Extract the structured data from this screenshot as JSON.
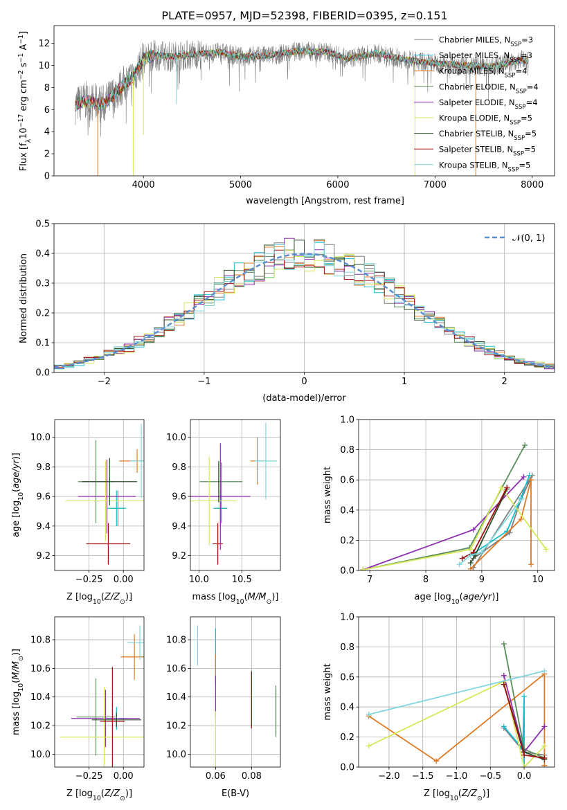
{
  "figure_title": "PLATE=0957, MJD=52398, FIBERID=0395, z=0.151",
  "models": [
    {
      "name": "Chabrier MILES, N_SSP=3",
      "base": "Chabrier MILES, N",
      "sub": "SSP",
      "tail": "=3",
      "color": "#7f7f7f"
    },
    {
      "name": "Salpeter MILES, N_SSP=3",
      "base": "Salpeter MILES, N",
      "sub": "SSP",
      "tail": "=3",
      "color": "#17becf"
    },
    {
      "name": "Kroupa MILES, N_SSP=4",
      "base": "Kroupa MILES, N",
      "sub": "SSP",
      "tail": "=4",
      "color": "#e07b24"
    },
    {
      "name": "Chabrier ELODIE, N_SSP=4",
      "base": "Chabrier ELODIE, N",
      "sub": "SSP",
      "tail": "=4",
      "color": "#5a8f5a"
    },
    {
      "name": "Salpeter ELODIE, N_SSP=4",
      "base": "Salpeter ELODIE, N",
      "sub": "SSP",
      "tail": "=4",
      "color": "#8e30b0"
    },
    {
      "name": "Kroupa ELODIE, N_SSP=5",
      "base": "Kroupa ELODIE, N",
      "sub": "SSP",
      "tail": "=5",
      "color": "#d6e85a"
    },
    {
      "name": "Chabrier STELIB, N_SSP=5",
      "base": "Chabrier STELIB, N",
      "sub": "SSP",
      "tail": "=5",
      "color": "#2f4f2f"
    },
    {
      "name": "Salpeter STELIB, N_SSP=5",
      "base": "Salpeter STELIB, N",
      "sub": "SSP",
      "tail": "=5",
      "color": "#a01010"
    },
    {
      "name": "Kroupa STELIB, N_SSP=5",
      "base": "Kroupa STELIB, N",
      "sub": "SSP",
      "tail": "=5",
      "color": "#7fd6dd"
    }
  ],
  "chart_data": [
    {
      "id": "spectrum",
      "type": "line",
      "xlabel": "wavelength [Angstrom, rest frame]",
      "ylabel": "Flux [f_λ 10^-17 erg cm^-2 s^-1 A^-1]",
      "xlim": [
        3080,
        8230
      ],
      "ylim": [
        0,
        13.6
      ],
      "xticks": [
        4000,
        5000,
        6000,
        7000,
        8000
      ],
      "yticks": [
        0,
        2,
        4,
        6,
        8,
        10,
        12
      ],
      "grid": false,
      "legend": "right, inside axes",
      "continuum": {
        "x": [
          3300,
          3400,
          3500,
          3600,
          3700,
          3800,
          3900,
          4000,
          4100,
          4300,
          4500,
          4800,
          5000,
          5300,
          5600,
          5900,
          6100,
          6400,
          6700,
          7000,
          7300,
          7600,
          7900,
          7950
        ],
        "y": [
          6.4,
          6.8,
          6.6,
          6.5,
          7.4,
          8.3,
          9.0,
          10.6,
          10.9,
          10.8,
          11.0,
          11.2,
          10.8,
          10.9,
          11.3,
          11.2,
          10.6,
          11.1,
          10.5,
          10.2,
          10.0,
          9.9,
          10.5,
          10.4
        ]
      },
      "absorption_lines": [
        {
          "x": 3530,
          "depth": 0.0
        },
        {
          "x": 3895,
          "depth": 0.0
        },
        {
          "x": 4000,
          "depth": 3.7
        },
        {
          "x": 4340,
          "depth": 6.5
        },
        {
          "x": 6795,
          "depth": 0.0
        },
        {
          "x": 7420,
          "depth": 0.0
        }
      ]
    },
    {
      "id": "residual_histogram",
      "type": "histogram",
      "xlabel": "(data-model)/error",
      "ylabel": "Normed distribution",
      "xlim": [
        -2.5,
        2.5
      ],
      "ylim": [
        0,
        0.5
      ],
      "xticks": [
        -2,
        -1,
        0,
        1,
        2
      ],
      "yticks": [
        0.0,
        0.1,
        0.2,
        0.3,
        0.4,
        0.5
      ],
      "grid": true,
      "legend": {
        "label": "𝒩(0, 1)",
        "position": "top-right"
      },
      "bin_width": 0.1,
      "reference_curve": "standard normal N(0,1)"
    },
    {
      "id": "age_vs_Z",
      "type": "errorbar",
      "xlabel": "Z [log10(Z/Z⊙)]",
      "ylabel": "age [log10(age/yr)]",
      "xlim": [
        -0.5,
        0.15
      ],
      "ylim": [
        9.1,
        10.12
      ],
      "xticks": [
        -0.25,
        0.0
      ],
      "yticks": [
        9.2,
        9.4,
        9.6,
        9.8,
        10.0
      ],
      "grid": true,
      "points": [
        {
          "x": -0.04,
          "y": 9.52,
          "xerr": 0.05,
          "yerr": 0.12
        },
        {
          "x": -0.05,
          "y": 9.52,
          "xerr": 0.07,
          "yerr": 0.12
        },
        {
          "x": 0.1,
          "y": 9.84,
          "xerr": 0.13,
          "yerr": 0.08
        },
        {
          "x": -0.2,
          "y": 9.7,
          "xerr": 0.13,
          "yerr": 0.28
        },
        {
          "x": -0.12,
          "y": 9.6,
          "xerr": 0.21,
          "yerr": 0.25
        },
        {
          "x": -0.13,
          "y": 9.57,
          "xerr": 0.29,
          "yerr": 0.27
        },
        {
          "x": -0.1,
          "y": 9.7,
          "xerr": 0.2,
          "yerr": 0.16
        },
        {
          "x": -0.11,
          "y": 9.28,
          "xerr": 0.16,
          "yerr": 0.14
        },
        {
          "x": 0.13,
          "y": 9.84,
          "xerr": 0.08,
          "yerr": 0.25
        }
      ]
    },
    {
      "id": "age_vs_mass",
      "type": "errorbar",
      "xlabel": "mass [log10(M/M⊙)]",
      "ylabel": "",
      "xlim": [
        9.9,
        10.95
      ],
      "ylim": [
        9.1,
        10.12
      ],
      "xticks": [
        10.0,
        10.5
      ],
      "yticks": [
        9.2,
        9.4,
        9.6,
        9.8,
        10.0
      ],
      "grid": true,
      "points": [
        {
          "x": 10.26,
          "y": 9.52,
          "xerr": 0.07,
          "yerr": 0.1
        },
        {
          "x": 10.25,
          "y": 9.52,
          "xerr": 0.08,
          "yerr": 0.12
        },
        {
          "x": 10.68,
          "y": 9.84,
          "xerr": 0.08,
          "yerr": 0.16
        },
        {
          "x": 10.26,
          "y": 9.7,
          "xerr": 0.25,
          "yerr": 0.13
        },
        {
          "x": 10.25,
          "y": 9.6,
          "xerr": 0.35,
          "yerr": 0.36
        },
        {
          "x": 10.12,
          "y": 9.57,
          "xerr": 0.32,
          "yerr": 0.3
        },
        {
          "x": 10.23,
          "y": 9.7,
          "xerr": 0.0,
          "yerr": 0.14
        },
        {
          "x": 10.22,
          "y": 9.28,
          "xerr": 0.06,
          "yerr": 0.14
        },
        {
          "x": 10.78,
          "y": 9.84,
          "xerr": 0.13,
          "yerr": 0.26
        }
      ]
    },
    {
      "id": "massweight_vs_age",
      "type": "line",
      "xlabel": "age [log10(age/yr)]",
      "ylabel": "mass weight",
      "xlim": [
        6.8,
        10.3
      ],
      "ylim": [
        0,
        1.0
      ],
      "xticks": [
        7,
        8,
        9,
        10
      ],
      "yticks": [
        0.0,
        0.2,
        0.4,
        0.6,
        0.8,
        1.0
      ],
      "grid": true,
      "series": [
        {
          "x": [
            8.85,
            9.5,
            9.7,
            9.9,
            8.85
          ],
          "y": [
            0.08,
            0.25,
            0.47,
            0.63,
            0.02
          ]
        },
        {
          "x": [
            8.8,
            9.45,
            9.7,
            9.85
          ],
          "y": [
            0.1,
            0.26,
            0.48,
            0.63
          ]
        },
        {
          "x": [
            8.8,
            9.7,
            9.88,
            9.88
          ],
          "y": [
            0.01,
            0.34,
            0.6,
            0.04
          ]
        },
        {
          "x": [
            6.88,
            8.78,
            9.77
          ],
          "y": [
            0.005,
            0.15,
            0.83
          ]
        },
        {
          "x": [
            6.88,
            8.85,
            9.75
          ],
          "y": [
            0.005,
            0.27,
            0.62
          ]
        },
        {
          "x": [
            6.88,
            8.8,
            9.35,
            10.15
          ],
          "y": [
            0.005,
            0.14,
            0.55,
            0.14
          ]
        },
        {
          "x": [
            8.8,
            8.88,
            9.45
          ],
          "y": [
            0.05,
            0.1,
            0.54
          ]
        },
        {
          "x": [
            8.65,
            8.85,
            9.45
          ],
          "y": [
            0.08,
            0.12,
            0.55
          ]
        },
        {
          "x": [
            8.6,
            8.8,
            9.0,
            9.7
          ],
          "y": [
            0.04,
            0.1,
            0.12,
            0.47
          ]
        }
      ]
    },
    {
      "id": "mass_vs_Z",
      "type": "errorbar",
      "xlabel": "Z [log10(Z/Z⊙)]",
      "ylabel": "mass [log10(M/M⊙)]",
      "xlim": [
        -0.5,
        0.15
      ],
      "ylim": [
        9.91,
        10.96
      ],
      "xticks": [
        -0.25,
        0.0
      ],
      "yticks": [
        10.0,
        10.2,
        10.4,
        10.6,
        10.8
      ],
      "grid": true,
      "points": [
        {
          "x": -0.05,
          "y": 10.25,
          "xerr": 0.08,
          "yerr": 0.06
        },
        {
          "x": -0.05,
          "y": 10.25,
          "xerr": 0.08,
          "yerr": 0.08
        },
        {
          "x": 0.08,
          "y": 10.68,
          "xerr": 0.1,
          "yerr": 0.16
        },
        {
          "x": -0.2,
          "y": 10.26,
          "xerr": 0.14,
          "yerr": 0.27
        },
        {
          "x": -0.13,
          "y": 10.25,
          "xerr": 0.25,
          "yerr": 0.2
        },
        {
          "x": -0.14,
          "y": 10.12,
          "xerr": 0.32,
          "yerr": 0.35
        },
        {
          "x": -0.05,
          "y": 10.24,
          "xerr": 0.18,
          "yerr": 0.05
        },
        {
          "x": -0.08,
          "y": 10.23,
          "xerr": 0.09,
          "yerr": 0.38
        },
        {
          "x": 0.12,
          "y": 10.78,
          "xerr": 0.09,
          "yerr": 0.12
        }
      ]
    },
    {
      "id": "mass_vs_EBV",
      "type": "errorbar",
      "xlabel": "E(B-V)",
      "ylabel": "",
      "xlim": [
        0.046,
        0.096
      ],
      "ylim": [
        9.91,
        10.96
      ],
      "xticks": [
        0.06,
        0.08
      ],
      "yticks": [
        10.0,
        10.2,
        10.4,
        10.6,
        10.8
      ],
      "grid": true,
      "points": [
        {
          "x": 0.0935,
          "y": 10.3,
          "xerr": 0.0,
          "yerr": 0.16
        },
        {
          "x": 0.06,
          "y": 10.68,
          "xerr": 0.0,
          "yerr": 0.2
        },
        {
          "x": 0.06,
          "y": 10.6,
          "xerr": 0.0,
          "yerr": 0.1
        },
        {
          "x": 0.0935,
          "y": 10.3,
          "xerr": 0.0,
          "yerr": 0.18
        },
        {
          "x": 0.06,
          "y": 10.4,
          "xerr": 0.0,
          "yerr": 0.15
        },
        {
          "x": 0.06,
          "y": 10.1,
          "xerr": 0.0,
          "yerr": 0.2
        },
        {
          "x": 0.08,
          "y": 10.38,
          "xerr": 0.0,
          "yerr": 0.19
        },
        {
          "x": 0.08,
          "y": 10.38,
          "xerr": 0.0,
          "yerr": 0.2
        },
        {
          "x": 0.05,
          "y": 10.76,
          "xerr": 0.0,
          "yerr": 0.14
        }
      ]
    },
    {
      "id": "massweight_vs_Z",
      "type": "line",
      "xlabel": "Z [log10(Z/Z⊙)]",
      "ylabel": "mass weight",
      "xlim": [
        -2.45,
        0.45
      ],
      "ylim": [
        0,
        1.0
      ],
      "xticks": [
        -2.0,
        -1.5,
        -1.0,
        -0.5,
        0.0
      ],
      "yticks": [
        0.0,
        0.2,
        0.4,
        0.6,
        0.8,
        1.0
      ],
      "grid": true,
      "series": [
        {
          "x": [
            -0.3,
            0.0,
            0.3
          ],
          "y": [
            0.26,
            0.1,
            0.08
          ]
        },
        {
          "x": [
            -0.3,
            -0.02,
            0.0,
            0.0
          ],
          "y": [
            0.27,
            0.12,
            0.47,
            0.0
          ]
        },
        {
          "x": [
            -2.3,
            -1.3,
            0.3,
            0.3
          ],
          "y": [
            0.34,
            0.04,
            0.62,
            0.01
          ]
        },
        {
          "x": [
            -0.3,
            0.0,
            0.3
          ],
          "y": [
            0.82,
            0.12,
            0.06
          ]
        },
        {
          "x": [
            -0.3,
            0.0,
            0.3
          ],
          "y": [
            0.61,
            0.1,
            0.27
          ]
        },
        {
          "x": [
            -2.3,
            -0.3,
            0.0,
            0.3
          ],
          "y": [
            0.14,
            0.57,
            0.0,
            0.14
          ]
        },
        {
          "x": [
            -0.3,
            0.0,
            0.3
          ],
          "y": [
            0.55,
            0.1,
            0.05
          ]
        },
        {
          "x": [
            -0.3,
            0.0,
            0.3
          ],
          "y": [
            0.55,
            0.08,
            0.06
          ]
        },
        {
          "x": [
            -2.3,
            0.3
          ],
          "y": [
            0.35,
            0.64
          ]
        }
      ]
    }
  ]
}
